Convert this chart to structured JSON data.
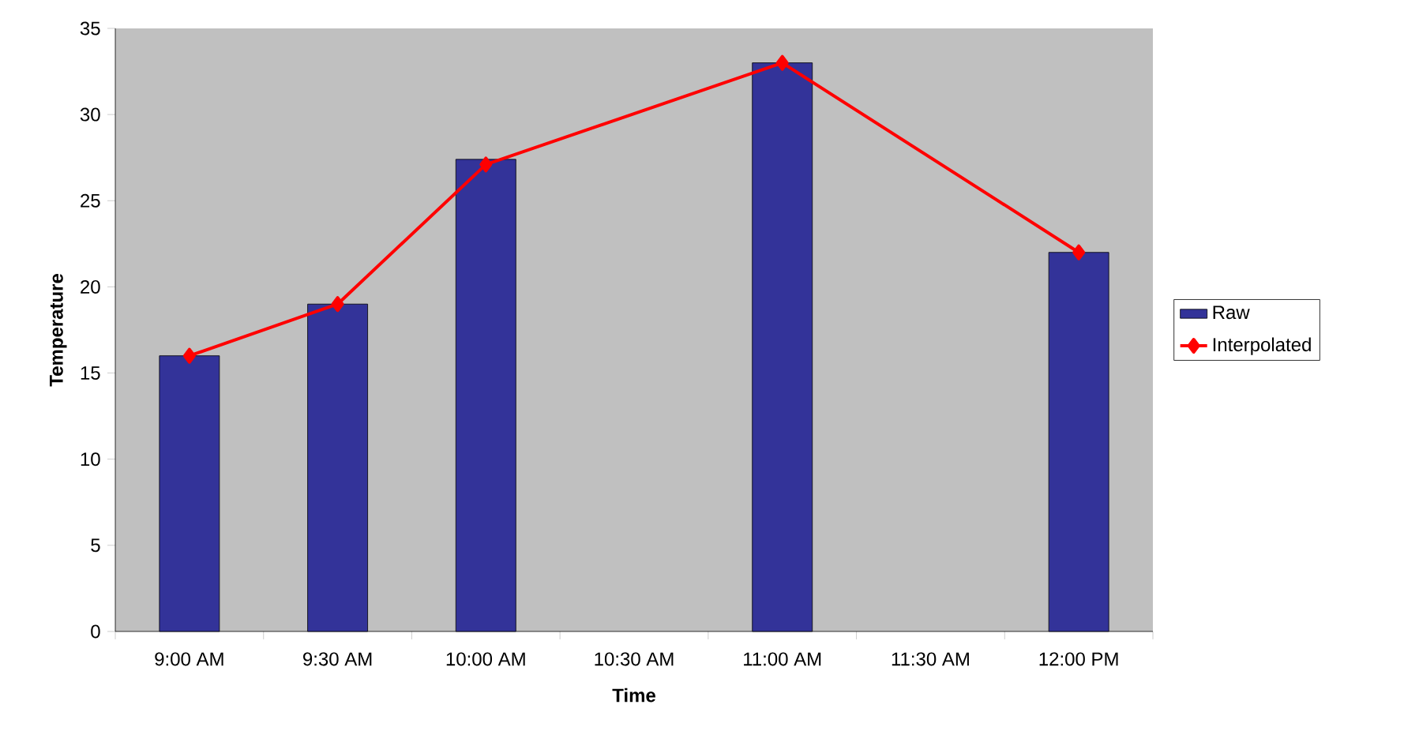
{
  "chart_data": {
    "type": "bar",
    "xlabel": "Time",
    "ylabel": "Temperature",
    "categories": [
      "9:00 AM",
      "9:30 AM",
      "10:00 AM",
      "10:30 AM",
      "11:00 AM",
      "11:30 AM",
      "12:00 PM"
    ],
    "series": [
      {
        "name": "Raw",
        "color": "#333399",
        "values": [
          16,
          19,
          27.4,
          null,
          33,
          null,
          22
        ]
      },
      {
        "name": "Interpolated",
        "type": "line",
        "color": "#ff0000",
        "marker": "diamond",
        "line_style": "solid",
        "values": [
          16,
          19,
          27.1,
          null,
          33,
          null,
          22
        ]
      }
    ],
    "ylim": [
      0,
      35
    ],
    "yticks": [
      0,
      5,
      10,
      15,
      20,
      25,
      30,
      35
    ],
    "legend": "right",
    "grid": false
  }
}
